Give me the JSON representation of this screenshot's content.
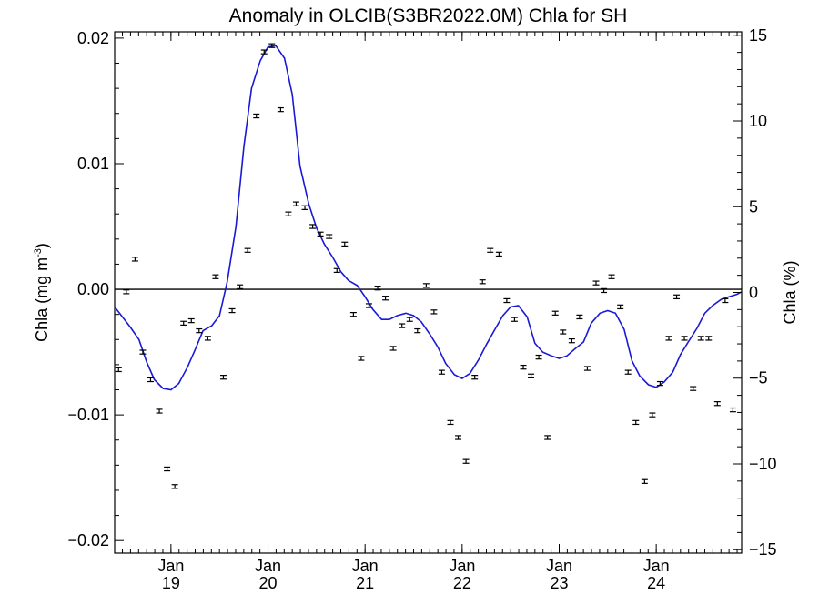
{
  "chart_data": {
    "type": "scatter",
    "title": "Anomaly in OLCIB(S3BR2022.0M) Chla for SH",
    "ylabel_left": {
      "main": "Chla (mg m",
      "sup": "-3",
      "close": ")"
    },
    "ylabel_right": "Chla (%)",
    "x_range": [
      2018.42,
      2024.88
    ],
    "ylim_left": [
      -0.021,
      0.0205
    ],
    "ylim_right": [
      -15.2,
      15.2
    ],
    "y_ticks_left": [
      {
        "value": 0.02,
        "label": "0.02"
      },
      {
        "value": 0.01,
        "label": "0.01"
      },
      {
        "value": 0.0,
        "label": "0.00"
      },
      {
        "value": -0.01,
        "label": "−0.01"
      },
      {
        "value": -0.02,
        "label": "−0.02"
      }
    ],
    "y_ticks_right": [
      {
        "value": 15,
        "label": "15"
      },
      {
        "value": 10,
        "label": "10"
      },
      {
        "value": 5,
        "label": "5"
      },
      {
        "value": 0,
        "label": "0"
      },
      {
        "value": -5,
        "label": "−5"
      },
      {
        "value": -10,
        "label": "−10"
      },
      {
        "value": -15,
        "label": "−15"
      }
    ],
    "x_ticks": [
      {
        "value": 2019.0,
        "month": "Jan",
        "year": "19"
      },
      {
        "value": 2020.0,
        "month": "Jan",
        "year": "20"
      },
      {
        "value": 2021.0,
        "month": "Jan",
        "year": "21"
      },
      {
        "value": 2022.0,
        "month": "Jan",
        "year": "22"
      },
      {
        "value": 2023.0,
        "month": "Jan",
        "year": "23"
      },
      {
        "value": 2024.0,
        "month": "Jan",
        "year": "24"
      }
    ],
    "zero_line": true,
    "series": [
      {
        "kind": "points_with_error_bars",
        "color": "#000000",
        "error": 0.00015,
        "x": [
          2018.46,
          2018.54,
          2018.63,
          2018.71,
          2018.79,
          2018.88,
          2018.96,
          2019.04,
          2019.13,
          2019.21,
          2019.29,
          2019.38,
          2019.46,
          2019.54,
          2019.63,
          2019.71,
          2019.79,
          2019.88,
          2019.96,
          2020.04,
          2020.13,
          2020.21,
          2020.29,
          2020.38,
          2020.46,
          2020.54,
          2020.63,
          2020.71,
          2020.79,
          2020.88,
          2020.96,
          2021.04,
          2021.13,
          2021.21,
          2021.29,
          2021.38,
          2021.46,
          2021.54,
          2021.63,
          2021.71,
          2021.79,
          2021.88,
          2021.96,
          2022.04,
          2022.13,
          2022.21,
          2022.29,
          2022.38,
          2022.46,
          2022.54,
          2022.63,
          2022.71,
          2022.79,
          2022.88,
          2022.96,
          2023.04,
          2023.13,
          2023.21,
          2023.29,
          2023.38,
          2023.46,
          2023.54,
          2023.63,
          2023.71,
          2023.79,
          2023.88,
          2023.96,
          2024.04,
          2024.13,
          2024.21,
          2024.29,
          2024.38,
          2024.46,
          2024.54,
          2024.63,
          2024.71,
          2024.79
        ],
        "y": [
          -0.0064,
          -0.0002,
          0.0024,
          -0.005,
          -0.0072,
          -0.0097,
          -0.0143,
          -0.0157,
          -0.0027,
          -0.0025,
          -0.0033,
          -0.0039,
          0.001,
          -0.007,
          -0.0017,
          0.0002,
          0.0031,
          0.0138,
          0.0189,
          0.0194,
          0.0143,
          0.006,
          0.0068,
          0.0065,
          0.005,
          0.0044,
          0.0042,
          0.0015,
          0.0036,
          -0.002,
          -0.0055,
          -0.0013,
          0.0001,
          -0.0007,
          -0.0047,
          -0.0029,
          -0.0024,
          -0.0033,
          0.0003,
          -0.0018,
          -0.0066,
          -0.0106,
          -0.0118,
          -0.0137,
          -0.007,
          0.0006,
          0.0031,
          0.0028,
          -0.0009,
          -0.0024,
          -0.0062,
          -0.0069,
          -0.0054,
          -0.0118,
          -0.0019,
          -0.0034,
          -0.0041,
          -0.0022,
          -0.0063,
          0.0005,
          -0.0001,
          0.001,
          -0.0014,
          -0.0066,
          -0.0106,
          -0.0153,
          -0.01,
          -0.0075,
          -0.0039,
          -0.0006,
          -0.0039,
          -0.0079,
          -0.0039,
          -0.0039,
          -0.0091,
          -0.0009,
          -0.0096
        ]
      },
      {
        "kind": "line",
        "color": "#1a1ad6",
        "x": [
          2018.42,
          2018.5,
          2018.58,
          2018.67,
          2018.75,
          2018.83,
          2018.92,
          2019.0,
          2019.08,
          2019.17,
          2019.25,
          2019.33,
          2019.42,
          2019.5,
          2019.58,
          2019.67,
          2019.75,
          2019.83,
          2019.92,
          2020.0,
          2020.08,
          2020.17,
          2020.25,
          2020.33,
          2020.42,
          2020.5,
          2020.58,
          2020.67,
          2020.75,
          2020.83,
          2020.92,
          2021.0,
          2021.08,
          2021.17,
          2021.25,
          2021.33,
          2021.42,
          2021.5,
          2021.58,
          2021.67,
          2021.75,
          2021.83,
          2021.92,
          2022.0,
          2022.08,
          2022.17,
          2022.25,
          2022.33,
          2022.42,
          2022.5,
          2022.58,
          2022.67,
          2022.75,
          2022.83,
          2022.92,
          2023.0,
          2023.08,
          2023.17,
          2023.25,
          2023.33,
          2023.42,
          2023.5,
          2023.58,
          2023.67,
          2023.75,
          2023.83,
          2023.92,
          2024.0,
          2024.08,
          2024.17,
          2024.25,
          2024.33,
          2024.42,
          2024.5,
          2024.58,
          2024.67,
          2024.75,
          2024.83,
          2024.88
        ],
        "y": [
          -0.0014,
          -0.0022,
          -0.003,
          -0.004,
          -0.0058,
          -0.0072,
          -0.0079,
          -0.008,
          -0.0075,
          -0.0062,
          -0.0048,
          -0.0033,
          -0.0029,
          -0.0021,
          0.0006,
          0.005,
          0.0113,
          0.016,
          0.0182,
          0.0193,
          0.0194,
          0.0184,
          0.0155,
          0.0098,
          0.0068,
          0.0049,
          0.0036,
          0.0025,
          0.0014,
          0.0007,
          0.0003,
          -0.0006,
          -0.0016,
          -0.0024,
          -0.0024,
          -0.0021,
          -0.0019,
          -0.0021,
          -0.0026,
          -0.0036,
          -0.0046,
          -0.0059,
          -0.0068,
          -0.0071,
          -0.0067,
          -0.0056,
          -0.0044,
          -0.0033,
          -0.0021,
          -0.0014,
          -0.0013,
          -0.0022,
          -0.0043,
          -0.005,
          -0.0053,
          -0.0055,
          -0.0053,
          -0.0047,
          -0.0042,
          -0.0027,
          -0.0019,
          -0.0017,
          -0.0019,
          -0.0032,
          -0.0057,
          -0.0069,
          -0.0076,
          -0.0078,
          -0.0074,
          -0.0066,
          -0.0052,
          -0.0042,
          -0.0031,
          -0.0019,
          -0.0013,
          -0.0008,
          -0.0006,
          -0.0004,
          -0.0002
        ]
      }
    ]
  }
}
